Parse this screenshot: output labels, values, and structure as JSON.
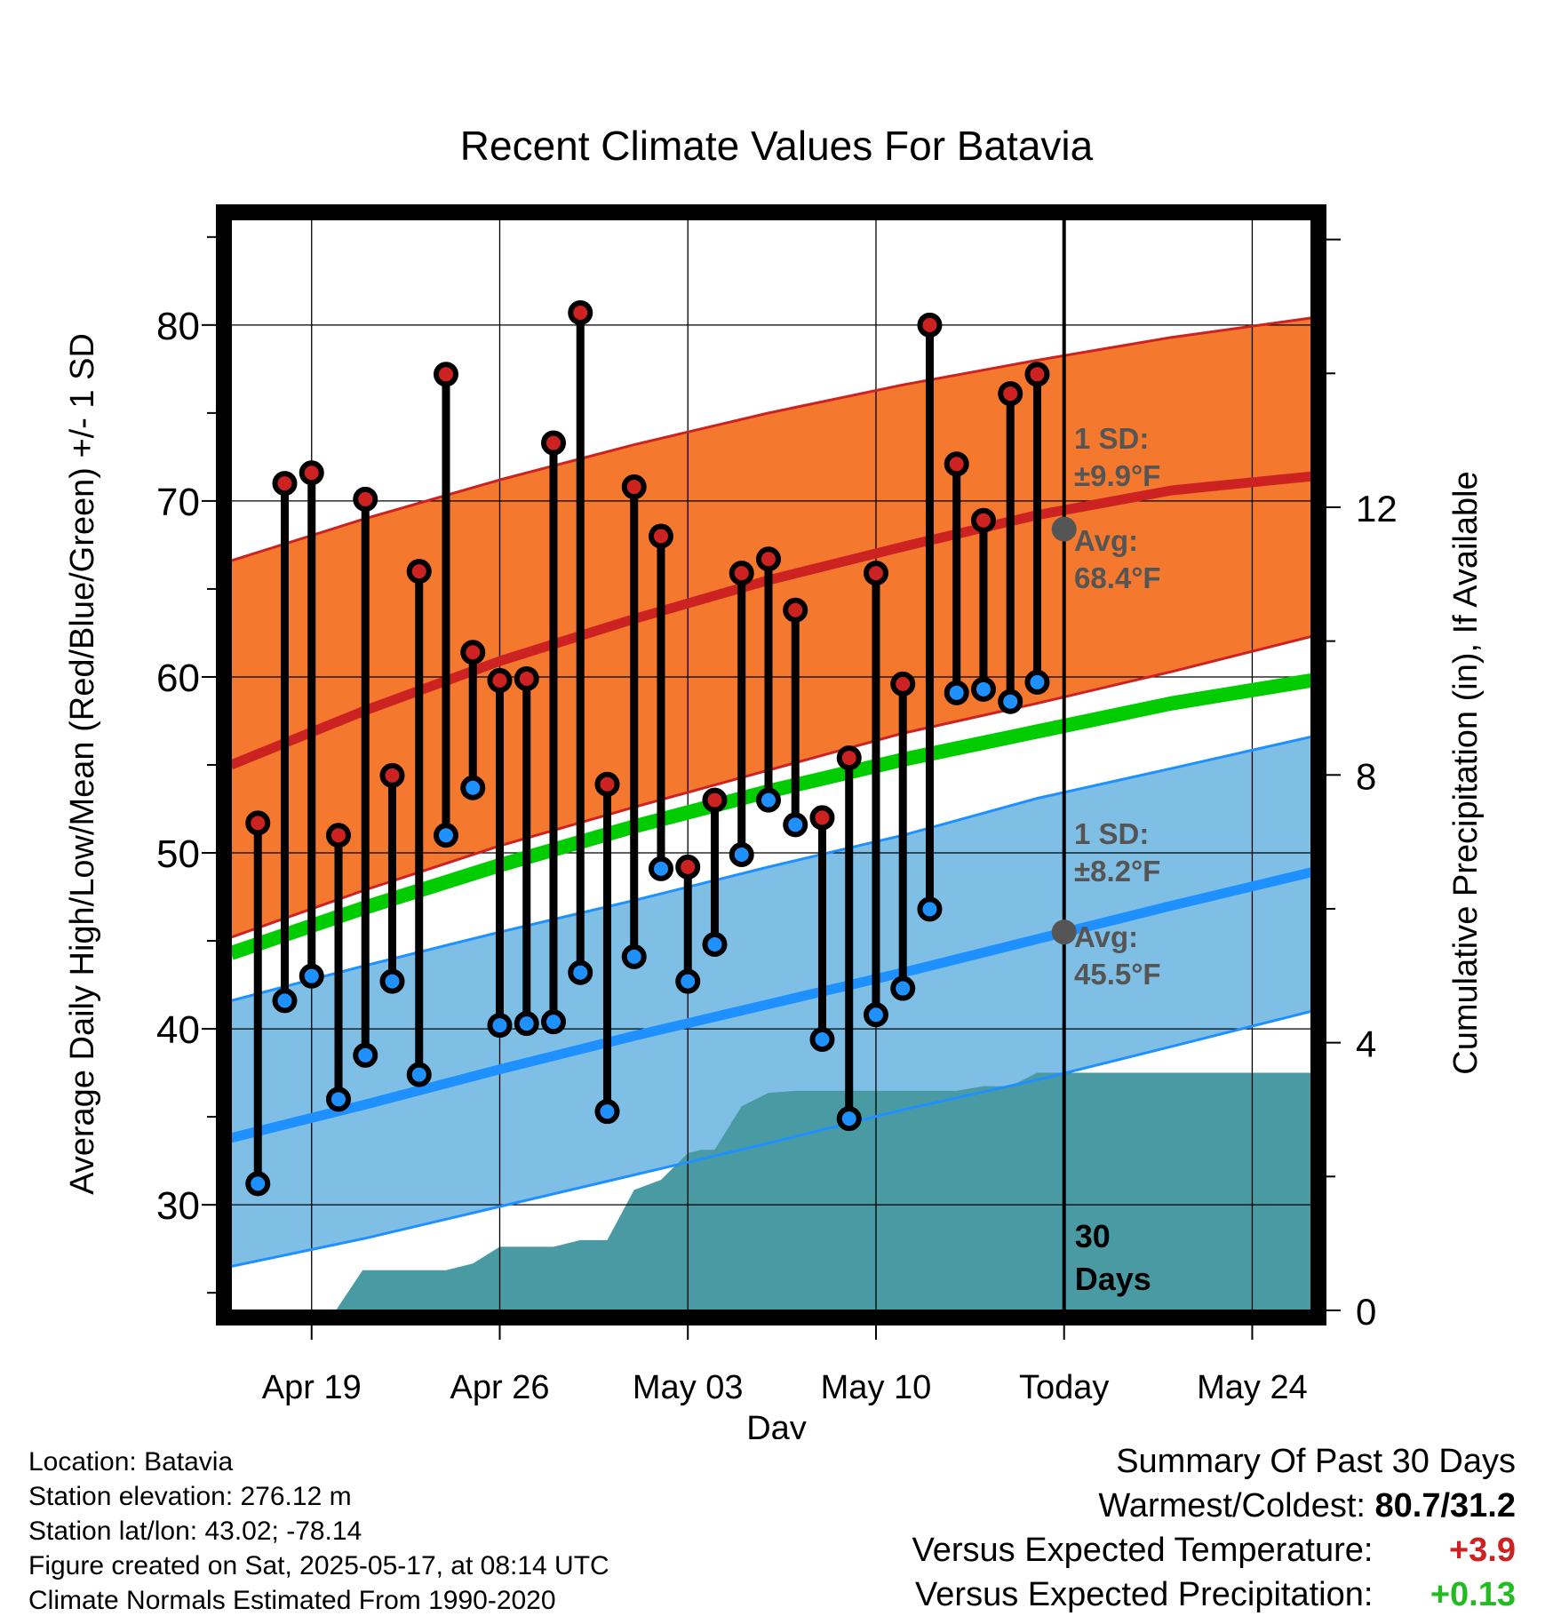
{
  "chart_data": {
    "type": "line",
    "title": "Recent Climate Values For Batavia",
    "xlabel": "Day",
    "ylabel": "Average Daily High/Low/Mean (Red/Blue/Green) +/- 1 SD",
    "y2label": "Cumulative Precipitation (in), If Available",
    "x_ticks": [
      {
        "day": 3,
        "label": "Apr 19"
      },
      {
        "day": 10,
        "label": "Apr 26"
      },
      {
        "day": 17,
        "label": "May 03"
      },
      {
        "day": 24,
        "label": "May 10"
      },
      {
        "day": 31,
        "label": "Today"
      },
      {
        "day": 38,
        "label": "May 24"
      }
    ],
    "xlim_days": [
      0,
      40.2
    ],
    "ylim": [
      24,
      86
    ],
    "y_ticks": [
      30,
      40,
      50,
      60,
      70,
      80
    ],
    "y2lim": [
      0,
      16.3
    ],
    "y2_ticks": [
      0,
      4,
      8,
      12
    ],
    "grid": true,
    "today_day": 31,
    "today_label": [
      "30",
      "Days"
    ],
    "series": [
      {
        "name": "Daily High",
        "color": "#cc2222",
        "x": [
          1,
          2,
          3,
          4,
          5,
          6,
          7,
          8,
          9,
          10,
          11,
          12,
          13,
          14,
          15,
          16,
          17,
          18,
          19,
          20,
          21,
          22,
          23,
          24,
          25,
          26,
          27,
          28,
          29,
          30
        ],
        "values": [
          51.7,
          71.0,
          71.6,
          51.0,
          70.1,
          54.4,
          66.0,
          77.2,
          61.4,
          59.8,
          59.9,
          73.3,
          80.7,
          53.9,
          70.8,
          68.0,
          49.2,
          53.0,
          65.9,
          66.7,
          63.8,
          52.0,
          55.4,
          65.9,
          59.6,
          80.0,
          72.1,
          68.9,
          76.1,
          77.2
        ]
      },
      {
        "name": "Daily Low",
        "color": "#1e90ff",
        "x": [
          1,
          2,
          3,
          4,
          5,
          6,
          7,
          8,
          9,
          10,
          11,
          12,
          13,
          14,
          15,
          16,
          17,
          18,
          19,
          20,
          21,
          22,
          23,
          24,
          25,
          26,
          27,
          28,
          29,
          30
        ],
        "values": [
          31.2,
          41.6,
          43.0,
          36.0,
          38.5,
          42.7,
          37.4,
          51.0,
          53.7,
          40.2,
          40.3,
          40.4,
          43.2,
          35.3,
          44.1,
          49.1,
          42.7,
          44.8,
          49.9,
          53.0,
          51.6,
          39.4,
          34.9,
          40.8,
          42.3,
          46.8,
          59.1,
          59.3,
          58.6,
          59.7
        ]
      },
      {
        "name": "Normal High",
        "color": "#cc2222",
        "x": [
          0,
          5,
          10,
          15,
          20,
          25,
          30,
          35,
          40.2
        ],
        "values": [
          55.0,
          58.1,
          60.9,
          63.3,
          65.5,
          67.4,
          69.2,
          70.6,
          71.4
        ]
      },
      {
        "name": "Normal High SD Upper",
        "color": "#cc2222",
        "x": [
          0,
          5,
          10,
          15,
          20,
          25,
          30,
          35,
          40.2
        ],
        "values": [
          66.6,
          69.0,
          71.2,
          73.2,
          75.0,
          76.6,
          78.0,
          79.3,
          80.4
        ]
      },
      {
        "name": "Normal High SD Lower",
        "color": "#cc2222",
        "x": [
          0,
          5,
          10,
          15,
          20,
          25,
          30,
          35,
          40.2
        ],
        "values": [
          45.2,
          47.9,
          50.4,
          52.6,
          54.7,
          56.8,
          58.5,
          60.3,
          62.3
        ]
      },
      {
        "name": "Normal Mean",
        "color": "#00cc00",
        "x": [
          0,
          5,
          10,
          15,
          20,
          25,
          30,
          35,
          40.2
        ],
        "values": [
          44.3,
          46.9,
          49.3,
          51.5,
          53.5,
          55.3,
          56.9,
          58.5,
          59.8
        ]
      },
      {
        "name": "Normal Low",
        "color": "#1e90ff",
        "x": [
          0,
          5,
          10,
          15,
          20,
          25,
          30,
          35,
          40.2
        ],
        "values": [
          33.8,
          35.7,
          37.7,
          39.6,
          41.4,
          43.2,
          45.1,
          47.0,
          48.9
        ]
      },
      {
        "name": "Normal Low SD Upper",
        "color": "#1e90ff",
        "x": [
          0,
          5,
          10,
          15,
          20,
          25,
          30,
          35,
          40.2
        ],
        "values": [
          41.6,
          43.6,
          45.5,
          47.3,
          49.2,
          51.0,
          53.1,
          54.8,
          56.6
        ]
      },
      {
        "name": "Normal Low SD Lower",
        "color": "#1e90ff",
        "x": [
          0,
          5,
          10,
          15,
          20,
          25,
          30,
          35,
          40.2
        ],
        "values": [
          26.5,
          28.1,
          29.9,
          31.7,
          33.5,
          35.4,
          37.1,
          39.0,
          41.0
        ]
      },
      {
        "name": "Cumulative Precipitation",
        "color": "#4a9aa3",
        "x": [
          0,
          3.9,
          4.9,
          7,
          8,
          9,
          10,
          11,
          12,
          13,
          14,
          15,
          16,
          17,
          17.5,
          18,
          19,
          20,
          21,
          22,
          23,
          24,
          25,
          26,
          27,
          28,
          29,
          30,
          31,
          40.2
        ],
        "values": [
          0,
          0,
          0.6,
          0.6,
          0.6,
          0.7,
          0.95,
          0.95,
          0.95,
          1.05,
          1.05,
          1.8,
          1.95,
          2.35,
          2.4,
          2.4,
          3.05,
          3.25,
          3.28,
          3.28,
          3.28,
          3.28,
          3.28,
          3.28,
          3.28,
          3.35,
          3.35,
          3.55,
          3.55,
          3.55
        ]
      }
    ],
    "annotations": {
      "high": {
        "sd_line1": "1 SD:",
        "sd_line2": "±9.9°F",
        "avg_line1": "Avg:",
        "avg_line2": "68.4°F",
        "avg_value": 68.4
      },
      "low": {
        "sd_line1": "1 SD:",
        "sd_line2": "±8.2°F",
        "avg_line1": "Avg:",
        "avg_line2": "45.5°F",
        "avg_value": 45.5
      }
    },
    "colors": {
      "high_band": "#f4782e",
      "high_line": "#cc2222",
      "low_band": "#7fbfe6",
      "low_line": "#1e90ff",
      "mean_line": "#00cc00",
      "precip": "#4a9aa3",
      "annotation": "#555555"
    }
  },
  "footer": {
    "location": "Location: Batavia",
    "elevation": "Station elevation: 276.12 m",
    "latlon": "Station lat/lon: 43.02; -78.14",
    "created": "Figure created on Sat, 2025-05-17, at 08:14 UTC",
    "normals": "Climate Normals Estimated From 1990-2020"
  },
  "summary": {
    "title": "Summary Of Past 30 Days",
    "warmest_label": "Warmest/Coldest:",
    "warmest_value": "80.7/31.2",
    "temp_label": "Versus Expected Temperature:",
    "temp_value": "+3.9",
    "temp_color": "#cc2222",
    "precip_label": "Versus Expected Precipitation:",
    "precip_value": "+0.13",
    "precip_color": "#22bb22"
  }
}
